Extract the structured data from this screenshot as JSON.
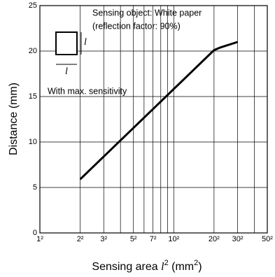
{
  "chart_data": {
    "type": "line",
    "xlabel": [
      "Sensing area ",
      "l",
      "2",
      " (mm",
      "2",
      ")"
    ],
    "ylabel": "Distance (mm)",
    "annotations": [
      "Sensing object: White paper",
      "(reflection factor: 90%)",
      "With max. sensitivity"
    ],
    "inset_labels": [
      "l",
      "l"
    ],
    "x": [
      4,
      400,
      500,
      900
    ],
    "series": [
      {
        "color": "#000000",
        "values": [
          5.9,
          20.1,
          20.4,
          21.0
        ]
      }
    ],
    "xscale": "log",
    "xlim": [
      1,
      2500
    ],
    "ylim": [
      0,
      25
    ],
    "xticks": [
      {
        "value": 1,
        "label": "1²"
      },
      {
        "value": 4,
        "label": "2²"
      },
      {
        "value": 9,
        "label": "3²"
      },
      {
        "value": 25,
        "label": "5²"
      },
      {
        "value": 49,
        "label": "7²"
      },
      {
        "value": 100,
        "label": "10²"
      },
      {
        "value": 400,
        "label": "20²"
      },
      {
        "value": 900,
        "label": "30²"
      },
      {
        "value": 2500,
        "label": "50²"
      }
    ],
    "x_minor_grid": [
      16,
      36,
      64,
      81,
      1600
    ],
    "yticks": [
      0,
      5,
      10,
      15,
      20,
      25
    ],
    "grid": true
  }
}
